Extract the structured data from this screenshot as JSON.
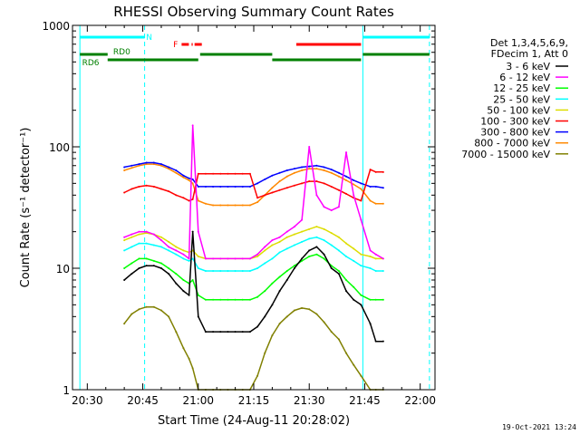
{
  "chart_data": {
    "type": "line",
    "title": "RHESSI Observing Summary Count Rates",
    "xlabel": "Start Time (24-Aug-11 20:28:02)",
    "ylabel": "Count Rate (s⁻¹ detector⁻¹)",
    "yscale": "log",
    "ylim": [
      1,
      1000
    ],
    "xlim_minutes": [
      -2,
      96
    ],
    "x_unit": "minutes after 20:28:02",
    "x_ticks": [
      {
        "label": "20:30",
        "min": 2
      },
      {
        "label": "20:45",
        "min": 17
      },
      {
        "label": "21:00",
        "min": 32
      },
      {
        "label": "21:15",
        "min": 47
      },
      {
        "label": "21:30",
        "min": 62
      },
      {
        "label": "21:45",
        "min": 77
      },
      {
        "label": "22:00",
        "min": 92
      }
    ],
    "y_ticks": [
      {
        "label": "1",
        "value": 1
      },
      {
        "label": "10",
        "value": 10
      },
      {
        "label": "100",
        "value": 100
      },
      {
        "label": "1000",
        "value": 1000
      }
    ],
    "legend_header": [
      "Det 1,3,4,5,6,9,",
      "FDecim 1, Att 0"
    ],
    "legend_position": "right",
    "series": [
      {
        "name": "3 - 6 keV",
        "color": "#000000",
        "x": [
          12,
          14,
          16,
          18,
          20,
          22,
          24,
          26,
          28,
          29.5,
          30.5,
          32,
          34,
          36,
          38,
          40,
          42,
          44,
          46,
          48,
          50,
          52,
          54,
          56,
          58,
          60,
          62,
          64,
          66,
          68,
          70,
          72,
          74,
          76,
          78.5,
          80,
          82
        ],
        "y": [
          8,
          9,
          10,
          10.5,
          10.5,
          10,
          9,
          7.5,
          6.5,
          6,
          20,
          4,
          3,
          3,
          3,
          3,
          3,
          3,
          3,
          3.3,
          4,
          5,
          6.5,
          8,
          10,
          12,
          14,
          15,
          13,
          10,
          9,
          6.5,
          5.5,
          5,
          3.5,
          2.5,
          2.5
        ]
      },
      {
        "name": "6 - 12 keV",
        "color": "#ff00ff",
        "x": [
          12,
          14,
          16,
          18,
          20,
          22,
          24,
          26,
          28,
          29.5,
          30.5,
          32,
          34,
          36,
          38,
          40,
          42,
          44,
          46,
          48,
          50,
          52,
          54,
          56,
          58,
          60,
          62,
          64,
          66,
          68,
          70,
          72,
          74,
          76,
          78.5,
          80,
          82
        ],
        "y": [
          18,
          19,
          20,
          20,
          19,
          17,
          15,
          14,
          13,
          12,
          150,
          20,
          12,
          12,
          12,
          12,
          12,
          12,
          12,
          13,
          15,
          17,
          18,
          20,
          22,
          25,
          100,
          40,
          32,
          30,
          32,
          90,
          40,
          25,
          14,
          13,
          12
        ]
      },
      {
        "name": "12 - 25 keV",
        "color": "#00ff00",
        "x": [
          12,
          14,
          16,
          18,
          20,
          22,
          24,
          26,
          28,
          29.5,
          30.5,
          32,
          34,
          36,
          38,
          40,
          42,
          44,
          46,
          48,
          50,
          52,
          54,
          56,
          58,
          60,
          62,
          64,
          66,
          68,
          70,
          72,
          74,
          76,
          78.5,
          80,
          82
        ],
        "y": [
          10,
          11,
          12,
          12,
          11.5,
          11,
          10,
          9,
          8,
          7.5,
          8,
          6,
          5.5,
          5.5,
          5.5,
          5.5,
          5.5,
          5.5,
          5.5,
          5.8,
          6.5,
          7.5,
          8.5,
          9.5,
          10.5,
          11.5,
          12.5,
          13,
          12,
          10.5,
          9.5,
          8,
          7,
          6,
          5.5,
          5.5,
          5.5
        ]
      },
      {
        "name": "25 - 50 keV",
        "color": "#00ffff",
        "x": [
          12,
          14,
          16,
          18,
          20,
          22,
          24,
          26,
          28,
          29.5,
          30.5,
          32,
          34,
          36,
          38,
          40,
          42,
          44,
          46,
          48,
          50,
          52,
          54,
          56,
          58,
          60,
          62,
          64,
          66,
          68,
          70,
          72,
          74,
          76,
          78.5,
          80,
          82
        ],
        "y": [
          14,
          15,
          16,
          16,
          15.5,
          15,
          14,
          13,
          12,
          11.5,
          12,
          10,
          9.5,
          9.5,
          9.5,
          9.5,
          9.5,
          9.5,
          9.5,
          10,
          11,
          12,
          13.5,
          14.5,
          15.5,
          16.5,
          17.5,
          18,
          17,
          15.5,
          14,
          12.5,
          11.5,
          10.5,
          10,
          9.5,
          9.5
        ]
      },
      {
        "name": "50 - 100 keV",
        "color": "#dddd00",
        "x": [
          12,
          14,
          16,
          18,
          20,
          22,
          24,
          26,
          28,
          29.5,
          30.5,
          32,
          34,
          36,
          38,
          40,
          42,
          44,
          46,
          48,
          50,
          52,
          54,
          56,
          58,
          60,
          62,
          64,
          66,
          68,
          70,
          72,
          74,
          76,
          78.5,
          80,
          82
        ],
        "y": [
          17,
          18,
          19,
          19.5,
          19,
          18,
          16.5,
          15,
          14,
          13.5,
          14,
          12.5,
          12,
          12,
          12,
          12,
          12,
          12,
          12,
          12.5,
          14,
          15.5,
          16.5,
          18,
          19,
          20,
          21,
          22,
          21,
          19.5,
          18,
          16,
          14.5,
          13,
          12.5,
          12,
          12
        ]
      },
      {
        "name": "100 - 300 keV",
        "color": "#ff0000",
        "x": [
          12,
          14,
          16,
          18,
          20,
          22,
          24,
          26,
          28,
          29.5,
          30.5,
          32,
          34,
          36,
          38,
          40,
          42,
          44,
          46,
          48,
          50,
          52,
          54,
          56,
          58,
          60,
          62,
          64,
          66,
          68,
          70,
          72,
          74,
          76,
          78.5,
          80,
          82
        ],
        "y": [
          42,
          45,
          47,
          48,
          47,
          45,
          43,
          40,
          38,
          36,
          37,
          60,
          60,
          60,
          60,
          60,
          60,
          60,
          60,
          38,
          40,
          42,
          44,
          46,
          48,
          50,
          52,
          52,
          50,
          47,
          44,
          41,
          38,
          36,
          65,
          62,
          62
        ]
      },
      {
        "name": "300 - 800 keV",
        "color": "#0000ff",
        "x": [
          12,
          14,
          16,
          18,
          20,
          22,
          24,
          26,
          28,
          29.5,
          30.5,
          32,
          34,
          36,
          38,
          40,
          42,
          44,
          46,
          48,
          50,
          52,
          54,
          56,
          58,
          60,
          62,
          64,
          66,
          68,
          70,
          72,
          74,
          76,
          78.5,
          80,
          82
        ],
        "y": [
          68,
          70,
          72,
          74,
          74,
          72,
          68,
          64,
          58,
          55,
          54,
          47,
          47,
          47,
          47,
          47,
          47,
          47,
          47,
          50,
          54,
          58,
          61,
          64,
          66,
          68,
          69,
          70,
          68,
          65,
          61,
          57,
          53,
          50,
          47,
          47,
          46
        ]
      },
      {
        "name": "800 - 7000 keV",
        "color": "#ff8800",
        "x": [
          12,
          14,
          16,
          18,
          20,
          22,
          24,
          26,
          28,
          29.5,
          30.5,
          32,
          34,
          36,
          38,
          40,
          42,
          44,
          46,
          48,
          50,
          52,
          54,
          56,
          58,
          60,
          62,
          64,
          66,
          68,
          70,
          72,
          74,
          76,
          78.5,
          80,
          82
        ],
        "y": [
          64,
          67,
          70,
          72,
          72,
          70,
          66,
          61,
          56,
          53,
          50,
          36,
          34,
          33,
          33,
          33,
          33,
          33,
          33,
          35,
          40,
          46,
          52,
          57,
          61,
          64,
          66,
          66,
          64,
          61,
          57,
          53,
          49,
          45,
          36,
          34,
          34
        ]
      },
      {
        "name": "7000 - 15000 keV",
        "color": "#808000",
        "x": [
          12,
          14,
          16,
          18,
          20,
          22,
          24,
          26,
          28,
          29.5,
          30.5,
          32,
          34,
          36,
          38,
          40,
          42,
          44,
          46,
          48,
          50,
          52,
          54,
          56,
          58,
          60,
          62,
          64,
          66,
          68,
          70,
          72,
          74,
          76,
          78.5,
          80,
          82
        ],
        "y": [
          3.5,
          4.2,
          4.6,
          4.8,
          4.8,
          4.5,
          4,
          3,
          2.2,
          1.8,
          1.5,
          1,
          1,
          1,
          1,
          1,
          1,
          1,
          1,
          1.3,
          2,
          2.8,
          3.5,
          4,
          4.5,
          4.7,
          4.6,
          4.2,
          3.6,
          3,
          2.6,
          2,
          1.6,
          1.3,
          1,
          1,
          1
        ]
      }
    ],
    "vlines": [
      {
        "min": 0,
        "color": "#00ffff",
        "style": "solid"
      },
      {
        "min": 17.5,
        "color": "#00ffff",
        "style": "dashed"
      },
      {
        "min": 76.5,
        "color": "#00ffff",
        "style": "solid"
      },
      {
        "min": 94.5,
        "color": "#00ffff",
        "style": "dashed"
      }
    ],
    "flag_bars": [
      {
        "label": "N",
        "color": "#00ffff",
        "y_row": 0,
        "segments": [
          [
            0,
            17.5
          ],
          [
            76.5,
            94.5
          ]
        ]
      },
      {
        "label": "F",
        "color": "#ff0000",
        "y_row": 1,
        "segments": [
          [
            27.5,
            30.5
          ],
          [
            31,
            33.5
          ],
          [
            58.5,
            76
          ]
        ]
      },
      {
        "label": "RD0",
        "color": "#008000",
        "y_row": 2,
        "segments": [
          [
            0,
            7.5
          ],
          [
            32.5,
            52
          ],
          [
            76.5,
            94.5
          ]
        ]
      },
      {
        "label": "RD6",
        "color": "#008000",
        "y_row": 3,
        "segments": [
          [
            7.5,
            32
          ],
          [
            52,
            76
          ]
        ]
      }
    ]
  },
  "timestamp": "19-Oct-2021 13:24"
}
